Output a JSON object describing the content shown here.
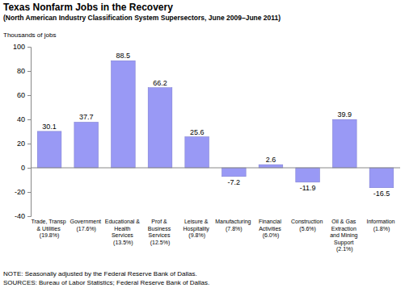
{
  "chart_data": {
    "type": "bar",
    "title": "Texas Nonfarm Jobs in the Recovery",
    "subtitle": "(North American Industry Classification System Supersectors, June 2009–June 2011)",
    "y_label": "Thousands of jobs",
    "categories": [
      "Trade, Transp & Utilities (19.8%)",
      "Government (17.6%)",
      "Educational & Health Services (13.5%)",
      "Prof & Business Services (12.5%)",
      "Leisure & Hospitality (9.8%)",
      "Manufacturing (7.8%)",
      "Financial Activities (6.0%)",
      "Construction (5.6%)",
      "Oil & Gas Extraction and Mining Support (2.1%)",
      "Information (1.8%)"
    ],
    "values": [
      30.1,
      37.7,
      88.5,
      66.2,
      25.6,
      -7.2,
      2.6,
      -11.9,
      39.9,
      -16.5
    ],
    "color": "#9999f5",
    "ylim": [
      -40,
      100
    ],
    "yticks": [
      -40,
      -20,
      0,
      20,
      40,
      60,
      80,
      100
    ],
    "grid": false,
    "data_labels": true,
    "notes": [
      "NOTE: Seasonally adjusted by the Federal Reserve Bank of Dallas.",
      "SOURCES: Bureau of Labor Statistics; Federal Reserve Bank of Dallas."
    ]
  }
}
